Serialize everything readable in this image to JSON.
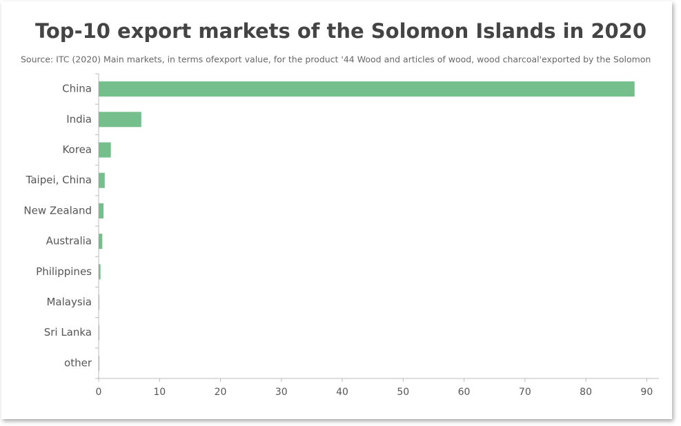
{
  "chart_data": {
    "type": "bar",
    "orientation": "horizontal",
    "title": "Top-10 export markets of the Solomon Islands in 2020",
    "subtitle": "Source: ITC (2020) Main markets, in terms ofexport value, for the product '44 Wood and articles of wood, wood charcoal'exported by the Solomon",
    "categories": [
      "China",
      "India",
      "Korea",
      "Taipei, China",
      "New Zealand",
      "Australia",
      "Philippines",
      "Malaysia",
      "Sri Lanka",
      "other"
    ],
    "values": [
      88,
      7,
      2,
      1,
      0.8,
      0.6,
      0.3,
      0.1,
      0.1,
      0.1
    ],
    "color": "#74bf8b",
    "xlim": [
      0,
      92
    ],
    "xticks": [
      0,
      10,
      20,
      30,
      40,
      50,
      60,
      70,
      80,
      90
    ],
    "grid": false
  }
}
